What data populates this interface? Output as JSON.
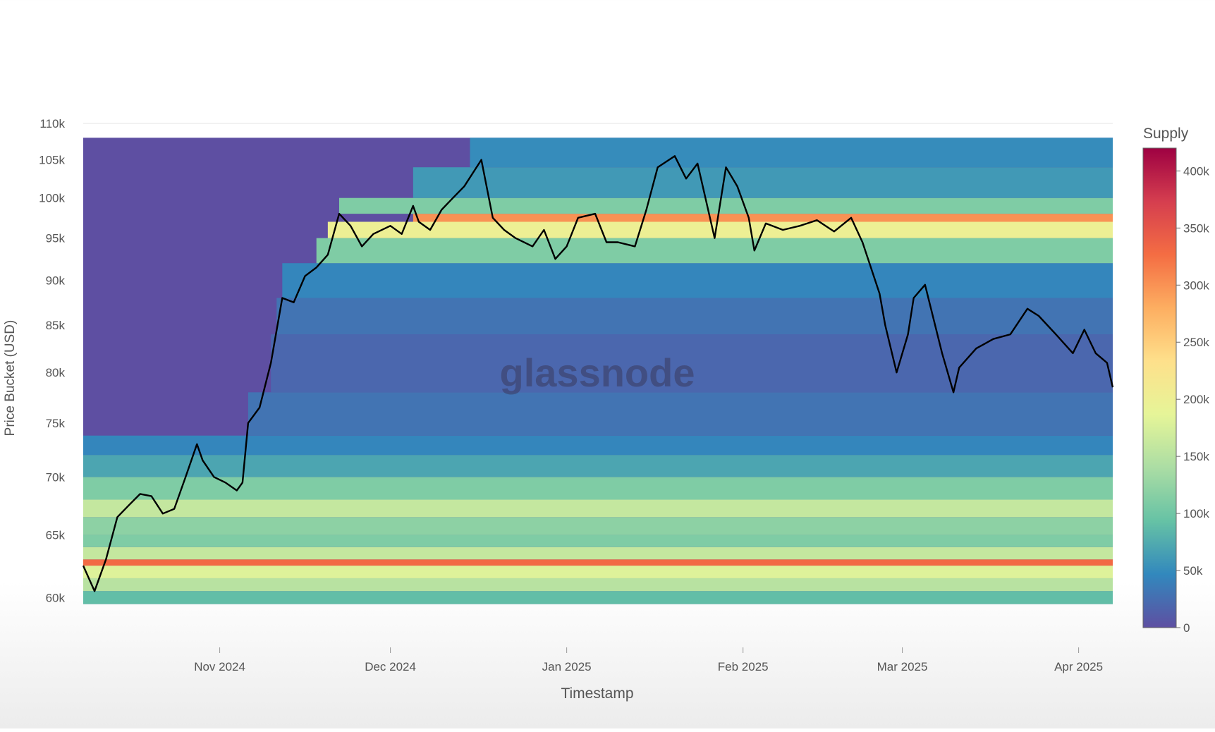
{
  "watermark": "glassnode",
  "colorbar": {
    "title": "Supply",
    "ticks": [
      "0",
      "50k",
      "100k",
      "150k",
      "200k",
      "250k",
      "300k",
      "350k",
      "400k"
    ],
    "tick_values": [
      0,
      50000,
      100000,
      150000,
      200000,
      250000,
      300000,
      350000,
      400000
    ],
    "range": [
      0,
      420000
    ],
    "colors": [
      "#5e4fa2",
      "#3288bd",
      "#66c2a5",
      "#abdda4",
      "#e6f598",
      "#fee08b",
      "#fdae61",
      "#f46d43",
      "#d53e4f",
      "#9e0142"
    ]
  },
  "chart_data": {
    "type": "heatmap",
    "title": "",
    "xlabel": "Timestamp",
    "ylabel": "Price Bucket (USD)",
    "x_range": [
      "2024-10-08",
      "2025-04-07"
    ],
    "x_ticks": [
      {
        "date": "2024-11-01",
        "label": "Nov 2024"
      },
      {
        "date": "2024-12-01",
        "label": "Dec 2024"
      },
      {
        "date": "2025-01-01",
        "label": "Jan 2025"
      },
      {
        "date": "2025-02-01",
        "label": "Feb 2025"
      },
      {
        "date": "2025-03-01",
        "label": "Mar 2025"
      },
      {
        "date": "2025-04-01",
        "label": "Apr 2025"
      }
    ],
    "y_scale": "log",
    "y_range": [
      59000,
      110000
    ],
    "y_ticks": [
      {
        "value": 60000,
        "label": "60k"
      },
      {
        "value": 65000,
        "label": "65k"
      },
      {
        "value": 70000,
        "label": "70k"
      },
      {
        "value": 75000,
        "label": "75k"
      },
      {
        "value": 80000,
        "label": "80k"
      },
      {
        "value": 85000,
        "label": "85k"
      },
      {
        "value": 90000,
        "label": "90k"
      },
      {
        "value": 95000,
        "label": "95k"
      },
      {
        "value": 100000,
        "label": "100k"
      },
      {
        "value": 105000,
        "label": "105k"
      },
      {
        "value": 110000,
        "label": "110k"
      }
    ],
    "z_range": [
      0,
      420000
    ],
    "heatmap_bands": [
      {
        "y0": 59500,
        "y1": 60500,
        "start": "2024-10-08",
        "end": "2025-04-07",
        "supply": 90000
      },
      {
        "y0": 60500,
        "y1": 61500,
        "start": "2024-10-08",
        "end": "2025-04-07",
        "supply": 150000
      },
      {
        "y0": 61500,
        "y1": 62500,
        "start": "2024-10-08",
        "end": "2025-04-07",
        "supply": 180000
      },
      {
        "y0": 62500,
        "y1": 63000,
        "start": "2024-10-08",
        "end": "2025-04-07",
        "supply": 330000
      },
      {
        "y0": 63000,
        "y1": 64000,
        "start": "2024-10-08",
        "end": "2025-04-07",
        "supply": 160000
      },
      {
        "y0": 64000,
        "y1": 65000,
        "start": "2024-10-08",
        "end": "2025-04-07",
        "supply": 110000
      },
      {
        "y0": 65000,
        "y1": 66500,
        "start": "2024-10-08",
        "end": "2025-04-07",
        "supply": 120000
      },
      {
        "y0": 66500,
        "y1": 68000,
        "start": "2024-10-08",
        "end": "2025-04-07",
        "supply": 160000
      },
      {
        "y0": 68000,
        "y1": 70000,
        "start": "2024-10-08",
        "end": "2025-04-07",
        "supply": 110000
      },
      {
        "y0": 70000,
        "y1": 72000,
        "start": "2024-10-08",
        "end": "2025-04-07",
        "supply": 70000
      },
      {
        "y0": 72000,
        "y1": 73800,
        "start": "2024-10-08",
        "end": "2025-04-07",
        "supply": 45000
      },
      {
        "y0": 73800,
        "y1": 78000,
        "start": "2024-11-06",
        "end": "2025-04-07",
        "supply": 30000
      },
      {
        "y0": 78000,
        "y1": 84000,
        "start": "2024-11-10",
        "end": "2025-04-07",
        "supply": 20000
      },
      {
        "y0": 84000,
        "y1": 88000,
        "start": "2024-11-11",
        "end": "2025-04-07",
        "supply": 30000
      },
      {
        "y0": 88000,
        "y1": 92000,
        "start": "2024-11-12",
        "end": "2025-04-07",
        "supply": 45000
      },
      {
        "y0": 92000,
        "y1": 95000,
        "start": "2024-11-18",
        "end": "2025-04-07",
        "supply": 110000
      },
      {
        "y0": 95000,
        "y1": 97000,
        "start": "2024-11-20",
        "end": "2025-04-07",
        "supply": 200000
      },
      {
        "y0": 97000,
        "y1": 98000,
        "start": "2024-12-05",
        "end": "2025-04-07",
        "supply": 300000
      },
      {
        "y0": 98000,
        "y1": 100000,
        "start": "2024-11-22",
        "end": "2025-04-07",
        "supply": 110000
      },
      {
        "y0": 100000,
        "y1": 104000,
        "start": "2024-12-05",
        "end": "2025-04-07",
        "supply": 60000
      },
      {
        "y0": 104000,
        "y1": 108000,
        "start": "2024-12-15",
        "end": "2025-04-07",
        "supply": 50000
      }
    ],
    "series": [
      {
        "type": "line",
        "x": [
          "2024-10-08",
          "2024-10-10",
          "2024-10-12",
          "2024-10-14",
          "2024-10-16",
          "2024-10-18",
          "2024-10-20",
          "2024-10-22",
          "2024-10-24",
          "2024-10-26",
          "2024-10-28",
          "2024-10-29",
          "2024-10-31",
          "2024-11-02",
          "2024-11-04",
          "2024-11-05",
          "2024-11-06",
          "2024-11-08",
          "2024-11-10",
          "2024-11-12",
          "2024-11-14",
          "2024-11-16",
          "2024-11-18",
          "2024-11-20",
          "2024-11-22",
          "2024-11-24",
          "2024-11-26",
          "2024-11-28",
          "2024-12-01",
          "2024-12-03",
          "2024-12-05",
          "2024-12-06",
          "2024-12-08",
          "2024-12-10",
          "2024-12-12",
          "2024-12-14",
          "2024-12-17",
          "2024-12-19",
          "2024-12-21",
          "2024-12-23",
          "2024-12-26",
          "2024-12-28",
          "2024-12-30",
          "2025-01-01",
          "2025-01-03",
          "2025-01-06",
          "2025-01-08",
          "2025-01-10",
          "2025-01-13",
          "2025-01-15",
          "2025-01-17",
          "2025-01-20",
          "2025-01-22",
          "2025-01-24",
          "2025-01-27",
          "2025-01-29",
          "2025-01-31",
          "2025-02-02",
          "2025-02-03",
          "2025-02-05",
          "2025-02-08",
          "2025-02-11",
          "2025-02-14",
          "2025-02-17",
          "2025-02-20",
          "2025-02-22",
          "2025-02-25",
          "2025-02-26",
          "2025-02-28",
          "2025-03-02",
          "2025-03-03",
          "2025-03-05",
          "2025-03-08",
          "2025-03-10",
          "2025-03-11",
          "2025-03-14",
          "2025-03-17",
          "2025-03-20",
          "2025-03-23",
          "2025-03-25",
          "2025-03-28",
          "2025-03-31",
          "2025-04-02",
          "2025-04-04",
          "2025-04-06",
          "2025-04-07"
        ],
        "y": [
          62500,
          60500,
          63000,
          66500,
          67500,
          68500,
          68300,
          66800,
          67200,
          70000,
          73000,
          71500,
          70000,
          69500,
          68800,
          69500,
          75000,
          76500,
          81000,
          88000,
          87500,
          90500,
          91500,
          93000,
          98000,
          96500,
          94000,
          95500,
          96500,
          95500,
          99000,
          97000,
          96000,
          98500,
          100000,
          101500,
          105000,
          97500,
          96000,
          95000,
          94000,
          96000,
          92500,
          94000,
          97500,
          98000,
          94500,
          94500,
          94000,
          98500,
          104000,
          105500,
          102500,
          104500,
          95000,
          104000,
          101500,
          97500,
          93500,
          96800,
          96000,
          96500,
          97200,
          95800,
          97500,
          94500,
          88500,
          85000,
          80000,
          84000,
          88000,
          89500,
          82000,
          78000,
          80500,
          82500,
          83500,
          84000,
          86800,
          86000,
          84000,
          82000,
          84500,
          82000,
          81000,
          78500
        ]
      }
    ]
  }
}
